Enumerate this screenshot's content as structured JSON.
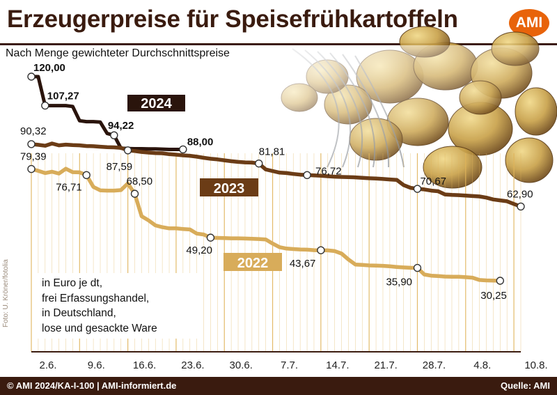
{
  "title": "Erzeugerpreise für Speisefrühkartoffeln",
  "logo": "AMI",
  "subtitle": "Nach Menge gewichteter Durchschnittspreise",
  "note_lines": [
    "in Euro je dt,",
    "frei Erfassungshandel,",
    "in Deutschland,",
    "lose und gesackte Ware"
  ],
  "photo_credit": "Foto: U. Kröner/fotolia",
  "footer": {
    "left": "© AMI 2024/KA-I-100 | AMI-informiert.de",
    "right": "Quelle: AMI"
  },
  "colors": {
    "s2024": "#2a140c",
    "s2023": "#6b3c16",
    "s2022": "#d8ac5a",
    "grid": "#e0b45a",
    "brand": "#3a1b0f",
    "logo": "#e8630a"
  },
  "chart_data": {
    "type": "line",
    "x_tick_labels": [
      "2.6.",
      "9.6.",
      "16.6.",
      "23.6.",
      "30.6.",
      "7.7.",
      "14.7.",
      "21.7.",
      "28.7.",
      "4.8.",
      "10.8."
    ],
    "x_domain_days": [
      0,
      71
    ],
    "ylim": [
      20,
      125
    ],
    "grid": true,
    "series": [
      {
        "name": "2024",
        "label": "2024",
        "color": "#2a140c",
        "points": [
          [
            0,
            120
          ],
          [
            1,
            120
          ],
          [
            2,
            107.27
          ],
          [
            3,
            107.27
          ],
          [
            4,
            107.27
          ],
          [
            5,
            107.27
          ],
          [
            6,
            106.9
          ],
          [
            7,
            100.6
          ],
          [
            8,
            100.2
          ],
          [
            9,
            100.2
          ],
          [
            10,
            100
          ],
          [
            11,
            95
          ],
          [
            12,
            94.22
          ],
          [
            13,
            88.5
          ],
          [
            14,
            88.4
          ],
          [
            15,
            88.3
          ],
          [
            16,
            88.3
          ],
          [
            17,
            88.2
          ],
          [
            18,
            88.2
          ],
          [
            19,
            88.1
          ],
          [
            20,
            88.0
          ],
          [
            21,
            88.0
          ],
          [
            22,
            88.0
          ]
        ],
        "labels": [
          {
            "i": 0,
            "text": "120,00"
          },
          {
            "i": 2,
            "text": "107,27"
          },
          {
            "i": 12,
            "text": "94,22"
          },
          {
            "i": 22,
            "text": "88,00"
          }
        ]
      },
      {
        "name": "2023",
        "label": "2023",
        "color": "#6b3c16",
        "points": [
          [
            0,
            90.32
          ],
          [
            1,
            90.0
          ],
          [
            2,
            89.6
          ],
          [
            3,
            90.6
          ],
          [
            4,
            89.8
          ],
          [
            5,
            90.1
          ],
          [
            6,
            89.9
          ],
          [
            7,
            89.8
          ],
          [
            8,
            89.5
          ],
          [
            9,
            89.4
          ],
          [
            10,
            89.2
          ],
          [
            11,
            89.0
          ],
          [
            12,
            88.9
          ],
          [
            13,
            88.7
          ],
          [
            14,
            87.59
          ],
          [
            15,
            87.3
          ],
          [
            16,
            86.9
          ],
          [
            17,
            86.6
          ],
          [
            18,
            86.4
          ],
          [
            19,
            86.3
          ],
          [
            20,
            85.9
          ],
          [
            21,
            85.7
          ],
          [
            22,
            85.4
          ],
          [
            23,
            85.2
          ],
          [
            24,
            84.8
          ],
          [
            25,
            84.3
          ],
          [
            26,
            83.9
          ],
          [
            27,
            83.6
          ],
          [
            28,
            83.2
          ],
          [
            29,
            82.8
          ],
          [
            30,
            82.5
          ],
          [
            31,
            82.3
          ],
          [
            32,
            82.2
          ],
          [
            33,
            81.81
          ],
          [
            34,
            79.2
          ],
          [
            35,
            78.5
          ],
          [
            36,
            77.8
          ],
          [
            37,
            77.6
          ],
          [
            38,
            77.2
          ],
          [
            39,
            76.9
          ],
          [
            40,
            76.72
          ],
          [
            41,
            76.6
          ],
          [
            42,
            76.4
          ],
          [
            43,
            76.2
          ],
          [
            44,
            76.0
          ],
          [
            45,
            75.9
          ],
          [
            46,
            75.8
          ],
          [
            47,
            75.7
          ],
          [
            48,
            75.5
          ],
          [
            49,
            75.3
          ],
          [
            50,
            75.2
          ],
          [
            51,
            75.0
          ],
          [
            52,
            74.8
          ],
          [
            53,
            74.6
          ],
          [
            54,
            72.3
          ],
          [
            55,
            71.1
          ],
          [
            56,
            70.67
          ],
          [
            57,
            70.4
          ],
          [
            58,
            69.9
          ],
          [
            59,
            69.6
          ],
          [
            60,
            68.2
          ],
          [
            61,
            68.0
          ],
          [
            62,
            67.9
          ],
          [
            63,
            67.7
          ],
          [
            64,
            67.5
          ],
          [
            65,
            67.3
          ],
          [
            66,
            66.8
          ],
          [
            67,
            66.0
          ],
          [
            68,
            65.6
          ],
          [
            69,
            65.2
          ],
          [
            70,
            64.0
          ],
          [
            71,
            62.9
          ]
        ],
        "labels": [
          {
            "i": 0,
            "text": "90,32"
          },
          {
            "i": 14,
            "text": "87,59"
          },
          {
            "i": 33,
            "text": "81,81"
          },
          {
            "i": 40,
            "text": "76,72"
          },
          {
            "i": 56,
            "text": "70,67"
          },
          {
            "i": 71,
            "text": "62,90"
          }
        ]
      },
      {
        "name": "2022",
        "label": "2022",
        "color": "#d8ac5a",
        "points": [
          [
            0,
            79.39
          ],
          [
            1,
            78.6
          ],
          [
            2,
            77.6
          ],
          [
            3,
            78.2
          ],
          [
            4,
            77.4
          ],
          [
            5,
            79.5
          ],
          [
            6,
            78.0
          ],
          [
            7,
            77.9
          ],
          [
            8,
            76.71
          ],
          [
            9,
            71.5
          ],
          [
            10,
            70.0
          ],
          [
            11,
            69.9
          ],
          [
            12,
            69.9
          ],
          [
            13,
            70.1
          ],
          [
            14,
            73.0
          ],
          [
            15,
            68.5
          ],
          [
            16,
            58.6
          ],
          [
            17,
            56.8
          ],
          [
            18,
            54.6
          ],
          [
            19,
            53.8
          ],
          [
            20,
            53.3
          ],
          [
            21,
            53.3
          ],
          [
            22,
            53.0
          ],
          [
            23,
            52.8
          ],
          [
            24,
            51.0
          ],
          [
            25,
            50.6
          ],
          [
            26,
            49.2
          ],
          [
            27,
            49.1
          ],
          [
            28,
            49.0
          ],
          [
            29,
            48.9
          ],
          [
            30,
            48.9
          ],
          [
            31,
            48.8
          ],
          [
            32,
            48.7
          ],
          [
            33,
            48.6
          ],
          [
            34,
            48.4
          ],
          [
            35,
            46.6
          ],
          [
            36,
            45.0
          ],
          [
            37,
            44.4
          ],
          [
            38,
            44.2
          ],
          [
            39,
            44.0
          ],
          [
            40,
            43.9
          ],
          [
            41,
            43.7
          ],
          [
            42,
            43.67
          ],
          [
            43,
            43.6
          ],
          [
            44,
            43.3
          ],
          [
            45,
            42.2
          ],
          [
            46,
            39.6
          ],
          [
            47,
            37.4
          ],
          [
            48,
            37.2
          ],
          [
            49,
            37.0
          ],
          [
            50,
            36.9
          ],
          [
            51,
            36.8
          ],
          [
            52,
            36.6
          ],
          [
            53,
            36.3
          ],
          [
            54,
            36.1
          ],
          [
            55,
            35.95
          ],
          [
            56,
            35.9
          ],
          [
            57,
            33.0
          ],
          [
            58,
            32.5
          ],
          [
            59,
            32.3
          ],
          [
            60,
            32.1
          ],
          [
            61,
            32.0
          ],
          [
            62,
            32.0
          ],
          [
            63,
            31.8
          ],
          [
            64,
            31.6
          ],
          [
            65,
            30.6
          ],
          [
            66,
            30.4
          ],
          [
            67,
            30.3
          ],
          [
            68,
            30.25
          ]
        ],
        "labels": [
          {
            "i": 0,
            "text": "79,39"
          },
          {
            "i": 8,
            "text": "76,71"
          },
          {
            "i": 15,
            "text": "68,50"
          },
          {
            "i": 26,
            "text": "49,20"
          },
          {
            "i": 42,
            "text": "43,67"
          },
          {
            "i": 56,
            "text": "35,90"
          },
          {
            "i": 68,
            "text": "30,25"
          }
        ]
      }
    ]
  }
}
